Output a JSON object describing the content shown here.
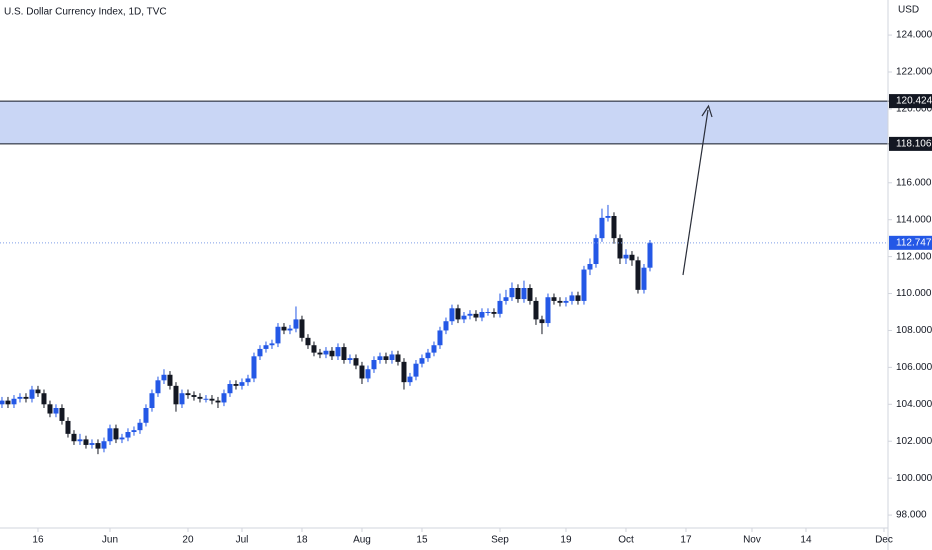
{
  "chart_data": {
    "type": "candlestick",
    "title": "U.S. Dollar Currency Index, 1D, TVC",
    "currency": "USD",
    "up_color": "#2458e6",
    "down_color": "#131722",
    "last_line_color": "#7f9ee6",
    "zone": {
      "low": 118.106,
      "high": 120.424,
      "color": "#c9d6f5"
    },
    "xlim": [
      -0.33,
      147.67
    ],
    "ylim": [
      97.3,
      125.9
    ],
    "xticks": [
      {
        "value": 6,
        "label": "16"
      },
      {
        "value": 18,
        "label": "Jun"
      },
      {
        "value": 31,
        "label": "20"
      },
      {
        "value": 40,
        "label": "Jul"
      },
      {
        "value": 50,
        "label": "18"
      },
      {
        "value": 60,
        "label": "Aug"
      },
      {
        "value": 70,
        "label": "15"
      },
      {
        "value": 83,
        "label": "Sep"
      },
      {
        "value": 94,
        "label": "19"
      },
      {
        "value": 104,
        "label": "Oct"
      },
      {
        "value": 114,
        "label": "17"
      },
      {
        "value": 125,
        "label": "Nov"
      },
      {
        "value": 134,
        "label": "14"
      },
      {
        "value": 147,
        "label": "Dec"
      }
    ],
    "yticks": [
      {
        "value": 98,
        "label": "98.000"
      },
      {
        "value": 100,
        "label": "100.000"
      },
      {
        "value": 102,
        "label": "102.000"
      },
      {
        "value": 104,
        "label": "104.000"
      },
      {
        "value": 106,
        "label": "106.000"
      },
      {
        "value": 108,
        "label": "108.000"
      },
      {
        "value": 110,
        "label": "110.000"
      },
      {
        "value": 112,
        "label": "112.000"
      },
      {
        "value": 114,
        "label": "114.000"
      },
      {
        "value": 116,
        "label": "116.000"
      },
      {
        "value": 118,
        "label": "118.000"
      },
      {
        "value": 120,
        "label": "120.000"
      },
      {
        "value": 122,
        "label": "122.000"
      },
      {
        "value": 124,
        "label": "124.000"
      }
    ],
    "open": [
      104.0,
      104.2,
      104.0,
      104.3,
      104.4,
      104.3,
      104.8,
      104.6,
      104.0,
      103.5,
      103.8,
      103.1,
      102.4,
      102.0,
      102.1,
      101.8,
      101.9,
      101.6,
      102.0,
      102.7,
      102.1,
      102.2,
      102.5,
      102.6,
      103.0,
      103.8,
      104.6,
      105.3,
      105.6,
      105.0,
      104.0,
      104.6,
      104.5,
      104.4,
      104.3,
      104.3,
      104.2,
      104.1,
      104.6,
      105.1,
      105.0,
      105.2,
      105.4,
      106.6,
      107.0,
      107.2,
      107.3,
      108.2,
      108.0,
      108.1,
      108.6,
      107.6,
      107.2,
      106.8,
      106.7,
      106.9,
      106.6,
      107.1,
      106.4,
      106.5,
      106.1,
      105.4,
      105.9,
      106.4,
      106.6,
      106.4,
      106.7,
      106.3,
      105.2,
      105.5,
      106.2,
      106.5,
      106.8,
      107.2,
      108.0,
      108.5,
      109.2,
      108.6,
      108.8,
      108.9,
      108.7,
      109.0,
      109.0,
      108.9,
      109.6,
      109.8,
      110.3,
      109.7,
      110.3,
      109.6,
      108.6,
      108.4,
      109.8,
      109.6,
      109.5,
      109.6,
      109.9,
      109.6,
      111.3,
      111.6,
      113.0,
      114.1,
      114.2,
      113.0,
      111.9,
      112.1,
      111.8,
      110.2,
      111.4
    ],
    "high": [
      104.4,
      104.4,
      104.5,
      104.6,
      104.6,
      105.0,
      105.0,
      104.8,
      104.2,
      104.0,
      104.0,
      103.3,
      102.6,
      102.4,
      102.3,
      102.1,
      102.1,
      102.2,
      102.9,
      102.9,
      102.4,
      102.7,
      102.8,
      103.2,
      104.0,
      104.8,
      105.5,
      105.9,
      105.8,
      105.2,
      104.8,
      104.8,
      104.7,
      104.6,
      104.5,
      104.5,
      104.4,
      104.8,
      105.3,
      105.3,
      105.4,
      105.6,
      106.8,
      107.2,
      107.4,
      107.5,
      108.4,
      108.4,
      108.3,
      109.3,
      108.8,
      107.8,
      107.4,
      107.0,
      107.1,
      107.1,
      107.3,
      107.3,
      106.7,
      106.7,
      106.3,
      106.1,
      106.6,
      106.8,
      106.8,
      106.9,
      106.9,
      106.5,
      105.7,
      106.4,
      106.7,
      107.0,
      107.4,
      108.2,
      108.7,
      109.4,
      109.4,
      109.0,
      109.1,
      109.1,
      109.2,
      109.2,
      109.2,
      110.0,
      110.2,
      110.6,
      110.5,
      110.7,
      110.5,
      109.8,
      108.8,
      110.0,
      110.0,
      109.8,
      109.8,
      110.1,
      110.1,
      111.5,
      111.9,
      113.2,
      114.6,
      114.8,
      114.4,
      113.2,
      112.4,
      112.3,
      112.0,
      111.6,
      112.9
    ],
    "low": [
      103.8,
      103.8,
      103.8,
      104.1,
      104.1,
      104.1,
      104.4,
      103.8,
      103.3,
      103.3,
      102.9,
      102.2,
      101.8,
      101.8,
      101.6,
      101.6,
      101.3,
      101.4,
      101.8,
      101.9,
      101.9,
      102.0,
      102.3,
      102.4,
      102.8,
      103.6,
      104.4,
      105.1,
      104.8,
      103.6,
      103.8,
      104.3,
      104.2,
      104.1,
      104.1,
      104.0,
      103.8,
      103.9,
      104.4,
      104.8,
      104.8,
      105.0,
      105.2,
      106.4,
      106.8,
      107.0,
      107.1,
      107.8,
      107.8,
      107.9,
      107.4,
      107.0,
      106.6,
      106.5,
      106.5,
      106.4,
      106.4,
      106.2,
      106.2,
      105.9,
      105.1,
      105.2,
      105.7,
      106.2,
      106.2,
      106.2,
      106.1,
      104.8,
      105.0,
      105.3,
      106.0,
      106.3,
      106.6,
      107.0,
      107.8,
      108.3,
      108.4,
      108.4,
      108.6,
      108.5,
      108.5,
      108.8,
      108.7,
      108.7,
      109.4,
      109.6,
      109.5,
      109.5,
      109.4,
      108.3,
      107.8,
      108.2,
      109.4,
      109.3,
      109.3,
      109.4,
      109.4,
      109.4,
      111.0,
      111.4,
      112.8,
      113.9,
      112.7,
      111.6,
      111.6,
      111.5,
      110.0,
      110.0,
      111.2
    ],
    "close": [
      104.2,
      104.0,
      104.3,
      104.4,
      104.3,
      104.8,
      104.6,
      104.0,
      103.5,
      103.8,
      103.1,
      102.4,
      102.0,
      102.1,
      101.8,
      101.9,
      101.6,
      102.0,
      102.7,
      102.1,
      102.2,
      102.5,
      102.6,
      103.0,
      103.8,
      104.6,
      105.3,
      105.6,
      105.0,
      104.0,
      104.6,
      104.5,
      104.4,
      104.3,
      104.3,
      104.2,
      104.1,
      104.6,
      105.1,
      105.0,
      105.2,
      105.4,
      106.6,
      107.0,
      107.2,
      107.3,
      108.2,
      108.0,
      108.1,
      108.6,
      107.6,
      107.2,
      106.8,
      106.7,
      106.9,
      106.6,
      107.1,
      106.4,
      106.5,
      106.1,
      105.4,
      105.9,
      106.4,
      106.6,
      106.4,
      106.7,
      106.3,
      105.2,
      105.5,
      106.2,
      106.5,
      106.8,
      107.2,
      108.0,
      108.5,
      109.2,
      108.6,
      108.8,
      108.9,
      108.7,
      109.0,
      109.0,
      108.9,
      109.6,
      109.8,
      110.3,
      109.7,
      110.3,
      109.6,
      108.6,
      108.4,
      109.8,
      109.6,
      109.5,
      109.6,
      109.9,
      109.6,
      111.3,
      111.6,
      113.0,
      114.1,
      114.2,
      113.0,
      111.9,
      112.1,
      111.8,
      110.2,
      111.4,
      112.747
    ]
  }
}
